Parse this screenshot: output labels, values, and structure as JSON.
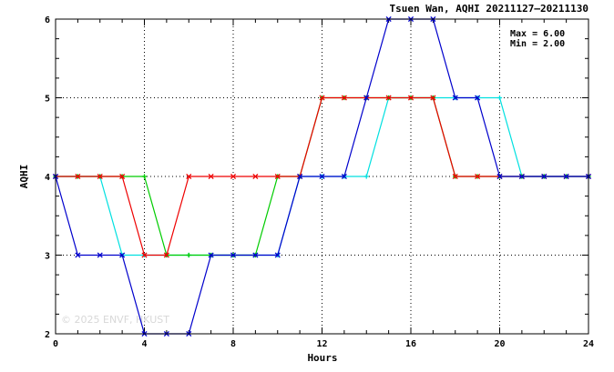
{
  "chart_data": {
    "type": "line",
    "title": "Tsuen Wan, AQHI 20211127–20211130",
    "xlabel": "Hours",
    "ylabel": "AQHI",
    "xlim": [
      0,
      24
    ],
    "ylim": [
      2,
      6
    ],
    "xticks": [
      0,
      4,
      8,
      12,
      16,
      20,
      24
    ],
    "yticks": [
      2,
      3,
      4,
      5,
      6
    ],
    "grid": true,
    "stats": {
      "max": "Max = 6.00",
      "min": "Min = 2.00"
    },
    "watermark": "© 2025  ENVF, HKUST",
    "x": [
      0,
      1,
      2,
      3,
      4,
      5,
      6,
      7,
      8,
      9,
      10,
      11,
      12,
      13,
      14,
      15,
      16,
      17,
      18,
      19,
      20,
      21,
      22,
      23,
      24
    ],
    "series": [
      {
        "color": "#00e0e0",
        "marker": "+",
        "values": [
          4,
          4,
          4,
          3,
          3,
          3,
          3,
          3,
          3,
          3,
          3,
          4,
          4,
          4,
          4,
          5,
          5,
          5,
          5,
          5,
          5,
          4,
          4,
          4,
          4
        ]
      },
      {
        "color": "#00cc00",
        "marker": "+",
        "values": [
          4,
          4,
          4,
          4,
          4,
          3,
          3,
          3,
          3,
          3,
          4,
          4,
          5,
          5,
          5,
          5,
          5,
          5,
          4,
          4,
          4,
          4,
          4,
          4,
          4
        ]
      },
      {
        "color": "#ee0000",
        "marker": "x",
        "values": [
          4,
          4,
          4,
          4,
          3,
          3,
          4,
          4,
          4,
          4,
          4,
          4,
          5,
          5,
          5,
          5,
          5,
          5,
          4,
          4,
          4,
          4,
          4,
          4,
          4
        ]
      },
      {
        "color": "#0000cc",
        "marker": "x",
        "values": [
          4,
          3,
          3,
          3,
          2,
          2,
          2,
          3,
          3,
          3,
          3,
          4,
          4,
          4,
          5,
          6,
          6,
          6,
          5,
          5,
          4,
          4,
          4,
          4,
          4
        ]
      }
    ]
  }
}
